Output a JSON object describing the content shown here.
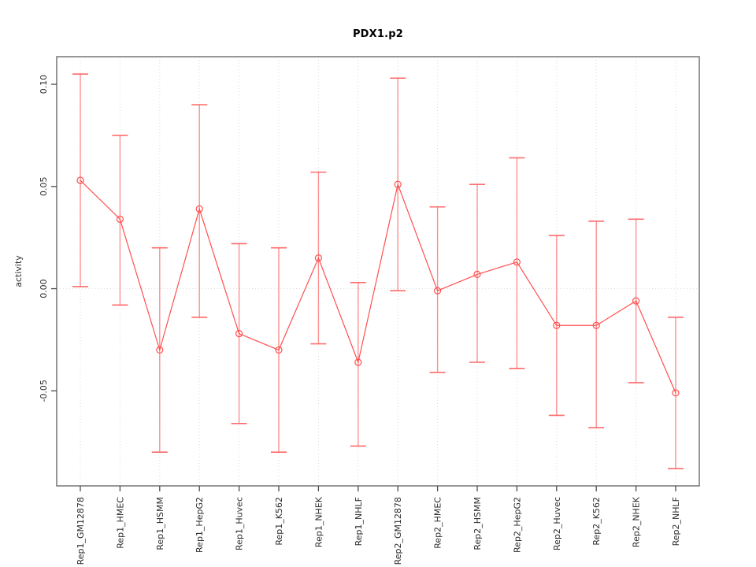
{
  "chart_data": {
    "type": "line",
    "title": "PDX1.p2",
    "ylabel": "activity",
    "xlabel": "",
    "legend_position": "none",
    "grid": "dotted vertical line at each category; dotted horizontal line at y=0",
    "categories": [
      "Rep1_GM12878",
      "Rep1_HMEC",
      "Rep1_HSMM",
      "Rep1_HepG2",
      "Rep1_Huvec",
      "Rep1_K562",
      "Rep1_NHEK",
      "Rep1_NHLF",
      "Rep2_GM12878",
      "Rep2_HMEC",
      "Rep2_HSMM",
      "Rep2_HepG2",
      "Rep2_Huvec",
      "Rep2_K562",
      "Rep2_NHEK",
      "Rep2_NHLF"
    ],
    "series": [
      {
        "name": "activity",
        "marker": "open-circle",
        "values": [
          0.053,
          0.034,
          -0.03,
          0.039,
          -0.022,
          -0.03,
          0.015,
          -0.036,
          0.051,
          -0.001,
          0.007,
          0.013,
          -0.018,
          -0.018,
          -0.006,
          -0.051
        ],
        "err_low": [
          0.001,
          -0.008,
          -0.08,
          -0.014,
          -0.066,
          -0.08,
          -0.027,
          -0.077,
          -0.001,
          -0.041,
          -0.036,
          -0.039,
          -0.062,
          -0.068,
          -0.046,
          -0.088
        ],
        "err_high": [
          0.105,
          0.075,
          0.02,
          0.09,
          0.022,
          0.02,
          0.057,
          0.003,
          0.103,
          0.04,
          0.051,
          0.064,
          0.026,
          0.033,
          0.034,
          -0.014
        ]
      }
    ],
    "yticks": [
      {
        "value": -0.05,
        "label": "-0.05"
      },
      {
        "value": 0.0,
        "label": "0.00"
      },
      {
        "value": 0.05,
        "label": "0.05"
      },
      {
        "value": 0.1,
        "label": "0.10"
      }
    ],
    "ylim": [
      -0.0965,
      0.1135
    ],
    "zero_line": true,
    "colors": {
      "series": "#ff4f4f",
      "error_bar": "#ff6b6b",
      "grid": "#dcdcdc",
      "axis_box": "#757575",
      "tick": "#4d4d4d",
      "tick_label": "#2b2b2b",
      "title": "#000000",
      "background": "#ffffff"
    }
  }
}
